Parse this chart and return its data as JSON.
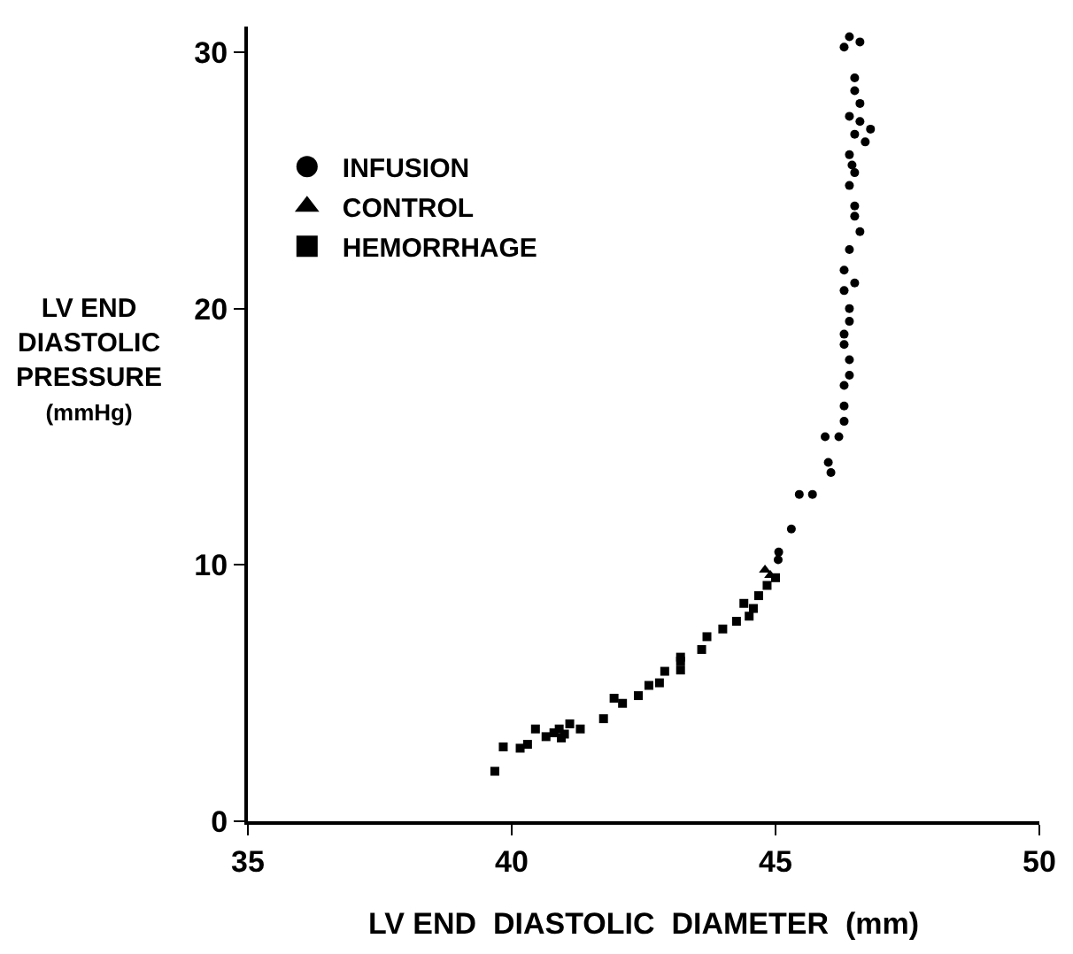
{
  "chart_data": {
    "type": "scatter",
    "xlabel": "LV END  DIASTOLIC  DIAMETER  (mm)",
    "ylabel": "LV END\nDIASTOLIC\nPRESSURE\n(mmHg)",
    "xlim": [
      35,
      50
    ],
    "xticks": [
      35,
      40,
      45,
      50
    ],
    "ylim": [
      0,
      31
    ],
    "yticks": [
      0,
      10,
      20,
      30
    ],
    "legend": "top left",
    "series": [
      {
        "name": "INFUSION",
        "color": "#000000",
        "marker": "circle",
        "x": [
          46.4,
          46.6,
          46.3,
          46.5,
          46.5,
          46.4,
          46.6,
          46.8,
          46.5,
          46.7,
          46.4,
          46.5,
          46.4,
          46.5,
          46.5,
          46.6,
          46.4,
          46.3,
          46.3,
          46.4,
          46.3,
          46.3,
          46.4,
          46.4,
          46.3,
          46.3,
          46.3,
          46.2,
          45.94,
          46.0,
          46.05,
          45.7,
          45.45,
          45.3,
          45.06,
          45.05,
          46.4,
          46.5,
          46.45,
          46.6
        ],
        "values": [
          30.6,
          30.4,
          30.2,
          29.0,
          28.5,
          27.5,
          27.3,
          27.0,
          26.8,
          26.5,
          26.0,
          25.3,
          24.8,
          24.0,
          23.6,
          23.0,
          22.3,
          21.5,
          20.7,
          20.0,
          19.0,
          18.6,
          18.0,
          17.4,
          17.0,
          16.2,
          15.6,
          15.0,
          15.0,
          14.0,
          13.6,
          12.75,
          12.75,
          11.4,
          10.5,
          10.2,
          19.5,
          21.0,
          25.6,
          28.0
        ]
      },
      {
        "name": "CONTROL",
        "color": "#000000",
        "marker": "triangle",
        "x": [
          44.8,
          44.9
        ],
        "values": [
          9.8,
          9.6
        ]
      },
      {
        "name": "HEMORRHAGE",
        "color": "#000000",
        "marker": "square",
        "x": [
          39.68,
          39.84,
          40.16,
          40.3,
          40.45,
          40.65,
          40.8,
          40.94,
          41.1,
          41.3,
          41.74,
          41.94,
          42.1,
          42.4,
          42.6,
          42.8,
          42.9,
          43.2,
          43.2,
          43.2,
          43.6,
          43.7,
          44.0,
          44.26,
          44.4,
          44.58,
          44.68,
          44.84,
          45.0,
          40.9,
          41.0,
          44.5
        ],
        "values": [
          1.95,
          2.9,
          2.85,
          3.0,
          3.6,
          3.3,
          3.45,
          3.25,
          3.8,
          3.6,
          4.0,
          4.8,
          4.6,
          4.9,
          5.3,
          5.4,
          5.85,
          5.9,
          6.25,
          6.4,
          6.7,
          7.2,
          7.5,
          7.8,
          8.5,
          8.3,
          8.8,
          9.2,
          9.5,
          3.6,
          3.4,
          8.0
        ]
      }
    ]
  }
}
